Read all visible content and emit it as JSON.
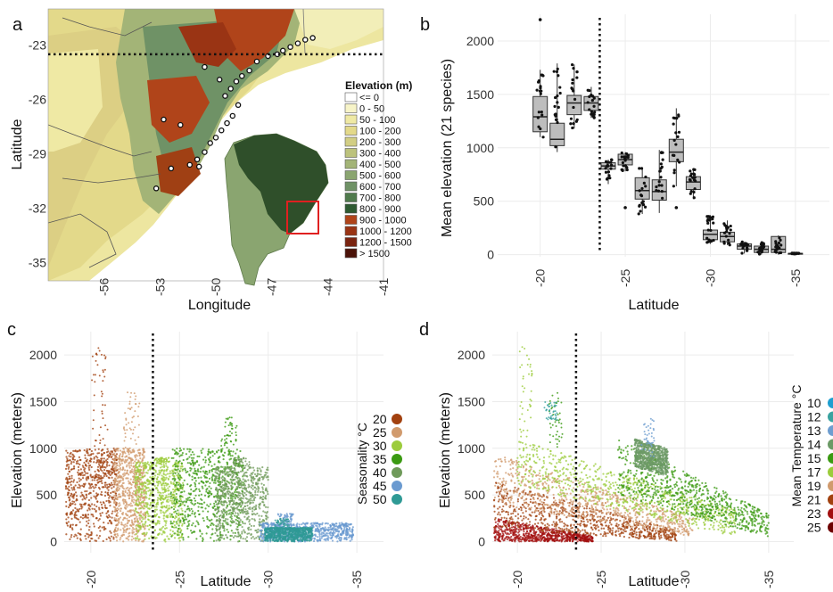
{
  "panels": {
    "a": "a",
    "b": "b",
    "c": "c",
    "d": "d"
  },
  "chart_data": [
    {
      "panel": "a",
      "type": "map",
      "xlabel": "Longitude",
      "ylabel": "Latitude",
      "x_ticks": [
        "-56",
        "-53",
        "-50",
        "-47",
        "-44",
        "-41"
      ],
      "y_ticks": [
        "-23",
        "-26",
        "-29",
        "-32",
        "-35"
      ],
      "xlim": [
        -59,
        -41
      ],
      "ylim": [
        -36,
        -21
      ],
      "reference_line_lat": -23.5,
      "legend_title": "Elevation (m)",
      "legend": [
        {
          "label": "<= 0",
          "color": "#ffffff"
        },
        {
          "label": "0 - 50",
          "color": "#f7f4c8"
        },
        {
          "label": "50 - 100",
          "color": "#efe9a4"
        },
        {
          "label": "100 - 200",
          "color": "#e3d98a"
        },
        {
          "label": "200 - 300",
          "color": "#d2ce84"
        },
        {
          "label": "300 - 400",
          "color": "#bcc27c"
        },
        {
          "label": "400 - 500",
          "color": "#a3b477"
        },
        {
          "label": "500 - 600",
          "color": "#8aa570"
        },
        {
          "label": "600 - 700",
          "color": "#6f9266"
        },
        {
          "label": "700 - 800",
          "color": "#4f7a4c"
        },
        {
          "label": "800 - 900",
          "color": "#2d5a31"
        },
        {
          "label": "900 - 1000",
          "color": "#b0441a"
        },
        {
          "label": "1000 - 1200",
          "color": "#9a3414"
        },
        {
          "label": "1200 - 1500",
          "color": "#7a2410"
        },
        {
          "label": "> 1500",
          "color": "#4a1208"
        }
      ],
      "points": [
        [
          -44.8,
          -22.6
        ],
        [
          -45.2,
          -22.7
        ],
        [
          -45.6,
          -22.9
        ],
        [
          -46.0,
          -23.1
        ],
        [
          -46.4,
          -23.3
        ],
        [
          -46.7,
          -23.5
        ],
        [
          -47.2,
          -23.6
        ],
        [
          -47.8,
          -23.9
        ],
        [
          -48.2,
          -24.4
        ],
        [
          -48.6,
          -24.7
        ],
        [
          -48.9,
          -25.0
        ],
        [
          -49.2,
          -25.4
        ],
        [
          -49.5,
          -25.8
        ],
        [
          -48.8,
          -26.3
        ],
        [
          -49.1,
          -26.9
        ],
        [
          -49.4,
          -27.3
        ],
        [
          -49.7,
          -27.7
        ],
        [
          -50.0,
          -28.1
        ],
        [
          -50.3,
          -28.4
        ],
        [
          -50.6,
          -28.9
        ],
        [
          -51.0,
          -29.3
        ],
        [
          -51.4,
          -29.6
        ],
        [
          -52.8,
          -27.1
        ],
        [
          -51.9,
          -27.4
        ],
        [
          -52.4,
          -29.8
        ],
        [
          -53.2,
          -30.9
        ],
        [
          -50.9,
          -29.7
        ],
        [
          -49.8,
          -24.9
        ],
        [
          -50.6,
          -24.2
        ],
        [
          -49.0,
          -28.6
        ]
      ],
      "inset": "South America with Brazil highlighted"
    },
    {
      "panel": "b",
      "type": "box",
      "xlabel": "Latitude",
      "ylabel": "Mean elevation (21 species)",
      "x_ticks": [
        -20,
        -25,
        -30,
        -35
      ],
      "y_ticks": [
        0,
        500,
        1000,
        1500,
        2000
      ],
      "xlim": [
        -17.5,
        -37
      ],
      "ylim": [
        -20,
        2250
      ],
      "reference_line_lat": -23.5,
      "boxes": [
        {
          "lat": -20,
          "q1": 1150,
          "median": 1290,
          "q3": 1480,
          "lo": 1100,
          "hi": 1730,
          "outlier": 2200
        },
        {
          "lat": -21,
          "q1": 1020,
          "median": 1080,
          "q3": 1230,
          "lo": 960,
          "hi": 1790
        },
        {
          "lat": -22,
          "q1": 1310,
          "median": 1420,
          "q3": 1490,
          "lo": 1180,
          "hi": 1780
        },
        {
          "lat": -23,
          "q1": 1350,
          "median": 1420,
          "q3": 1480,
          "lo": 1280,
          "hi": 1570
        },
        {
          "lat": -24,
          "q1": 800,
          "median": 830,
          "q3": 860,
          "lo": 660,
          "hi": 890
        },
        {
          "lat": -25,
          "q1": 840,
          "median": 890,
          "q3": 940,
          "lo": 780,
          "hi": 960,
          "outlier": 440
        },
        {
          "lat": -26,
          "q1": 520,
          "median": 600,
          "q3": 720,
          "lo": 380,
          "hi": 810
        },
        {
          "lat": -27,
          "q1": 510,
          "median": 590,
          "q3": 700,
          "lo": 390,
          "hi": 980
        },
        {
          "lat": -28,
          "q1": 870,
          "median": 960,
          "q3": 1080,
          "lo": 640,
          "hi": 1370,
          "outlier": 440
        },
        {
          "lat": -29,
          "q1": 610,
          "median": 680,
          "q3": 730,
          "lo": 520,
          "hi": 810
        },
        {
          "lat": -30,
          "q1": 140,
          "median": 190,
          "q3": 230,
          "lo": 100,
          "hi": 370
        },
        {
          "lat": -31,
          "q1": 120,
          "median": 170,
          "q3": 210,
          "lo": 90,
          "hi": 320
        },
        {
          "lat": -32,
          "q1": 50,
          "median": 80,
          "q3": 100,
          "lo": 10,
          "hi": 120
        },
        {
          "lat": -33,
          "q1": 20,
          "median": 50,
          "q3": 80,
          "lo": 0,
          "hi": 120
        },
        {
          "lat": -34,
          "q1": 20,
          "median": 50,
          "q3": 170,
          "lo": 0,
          "hi": 180
        },
        {
          "lat": -35,
          "q1": 8,
          "median": 10,
          "q3": 12,
          "lo": 5,
          "hi": 15
        }
      ]
    },
    {
      "panel": "c",
      "type": "scatter",
      "xlabel": "Latitude",
      "ylabel": "Elevation (meters)",
      "x_ticks": [
        -20,
        -25,
        -30,
        -35
      ],
      "y_ticks": [
        0,
        500,
        1000,
        1500,
        2000
      ],
      "xlim": [
        -18.5,
        -36.5
      ],
      "ylim": [
        -120,
        2250
      ],
      "reference_line_lat": -23.5,
      "legend_title": "Seasonality °C",
      "legend": [
        {
          "label": "20",
          "color": "#a2410f"
        },
        {
          "label": "25",
          "color": "#d19b6e"
        },
        {
          "label": "30",
          "color": "#9ccc3c"
        },
        {
          "label": "35",
          "color": "#3b9a12"
        },
        {
          "label": "40",
          "color": "#6f9a5a"
        },
        {
          "label": "45",
          "color": "#6a9ad0"
        },
        {
          "label": "50",
          "color": "#2f9a95"
        }
      ],
      "clusters": [
        {
          "class": "20",
          "lat": [
            -18.6,
            -21.5
          ],
          "elev": [
            0,
            1000
          ],
          "peak": 2100,
          "peak_lat": -20.5
        },
        {
          "class": "25",
          "lat": [
            -21.3,
            -23.1
          ],
          "elev": [
            0,
            1000
          ],
          "peak": 1600,
          "peak_lat": -22.3
        },
        {
          "class": "30",
          "lat": [
            -22.5,
            -25.2
          ],
          "elev": [
            0,
            850
          ],
          "peak": 900,
          "peak_lat": -24.0
        },
        {
          "class": "35",
          "lat": [
            -24.5,
            -28.6
          ],
          "elev": [
            0,
            1000
          ],
          "peak": 1340,
          "peak_lat": -27.8
        },
        {
          "class": "40",
          "lat": [
            -27.0,
            -30.0
          ],
          "elev": [
            0,
            800
          ],
          "peak": 900,
          "peak_lat": -28.5
        },
        {
          "class": "45",
          "lat": [
            -29.5,
            -34.8
          ],
          "elev": [
            0,
            200
          ],
          "peak": 300,
          "peak_lat": -31.0
        },
        {
          "class": "50",
          "lat": [
            -29.8,
            -32.5
          ],
          "elev": [
            0,
            150
          ],
          "peak": 250,
          "peak_lat": -30.8
        }
      ]
    },
    {
      "panel": "d",
      "type": "scatter",
      "xlabel": "Latitude",
      "ylabel": "Elevation (meters)",
      "x_ticks": [
        -20,
        -25,
        -30,
        -35
      ],
      "y_ticks": [
        0,
        500,
        1000,
        1500,
        2000
      ],
      "xlim": [
        -18.5,
        -36.5
      ],
      "ylim": [
        -120,
        2250
      ],
      "reference_line_lat": -23.5,
      "legend_title": "Mean Temperature °C",
      "legend": [
        {
          "label": "10",
          "color": "#1f9fd0"
        },
        {
          "label": "12",
          "color": "#3aa3a0"
        },
        {
          "label": "13",
          "color": "#6e9ed0"
        },
        {
          "label": "14",
          "color": "#6c9a66"
        },
        {
          "label": "15",
          "color": "#3b9a12"
        },
        {
          "label": "17",
          "color": "#9ccc3c"
        },
        {
          "label": "19",
          "color": "#d19b6e"
        },
        {
          "label": "21",
          "color": "#a2410f"
        },
        {
          "label": "23",
          "color": "#a31010"
        },
        {
          "label": "25",
          "color": "#6e0000"
        }
      ],
      "bands": [
        {
          "class": "23",
          "lat": [
            -18.6,
            -24.5
          ],
          "base_start": 0,
          "base_end": 0,
          "top_start": 250,
          "top_end": 60
        },
        {
          "class": "21",
          "lat": [
            -18.6,
            -29.5
          ],
          "base_start": 150,
          "base_end": 0,
          "top_start": 650,
          "top_end": 120
        },
        {
          "class": "19",
          "lat": [
            -18.6,
            -30.5
          ],
          "base_start": 400,
          "base_end": 50,
          "top_start": 950,
          "top_end": 250
        },
        {
          "class": "17",
          "lat": [
            -20.0,
            -33.0
          ],
          "base_start": 600,
          "base_end": 50,
          "top_start": 1100,
          "top_end": 350
        },
        {
          "class": "15",
          "lat": [
            -26.0,
            -35.0
          ],
          "base_start": 500,
          "base_end": 50,
          "top_start": 1100,
          "top_end": 300
        },
        {
          "class": "14",
          "lat": [
            -27.0,
            -29.0
          ],
          "base_start": 800,
          "base_end": 700,
          "top_start": 1100,
          "top_end": 1000
        }
      ]
    }
  ]
}
